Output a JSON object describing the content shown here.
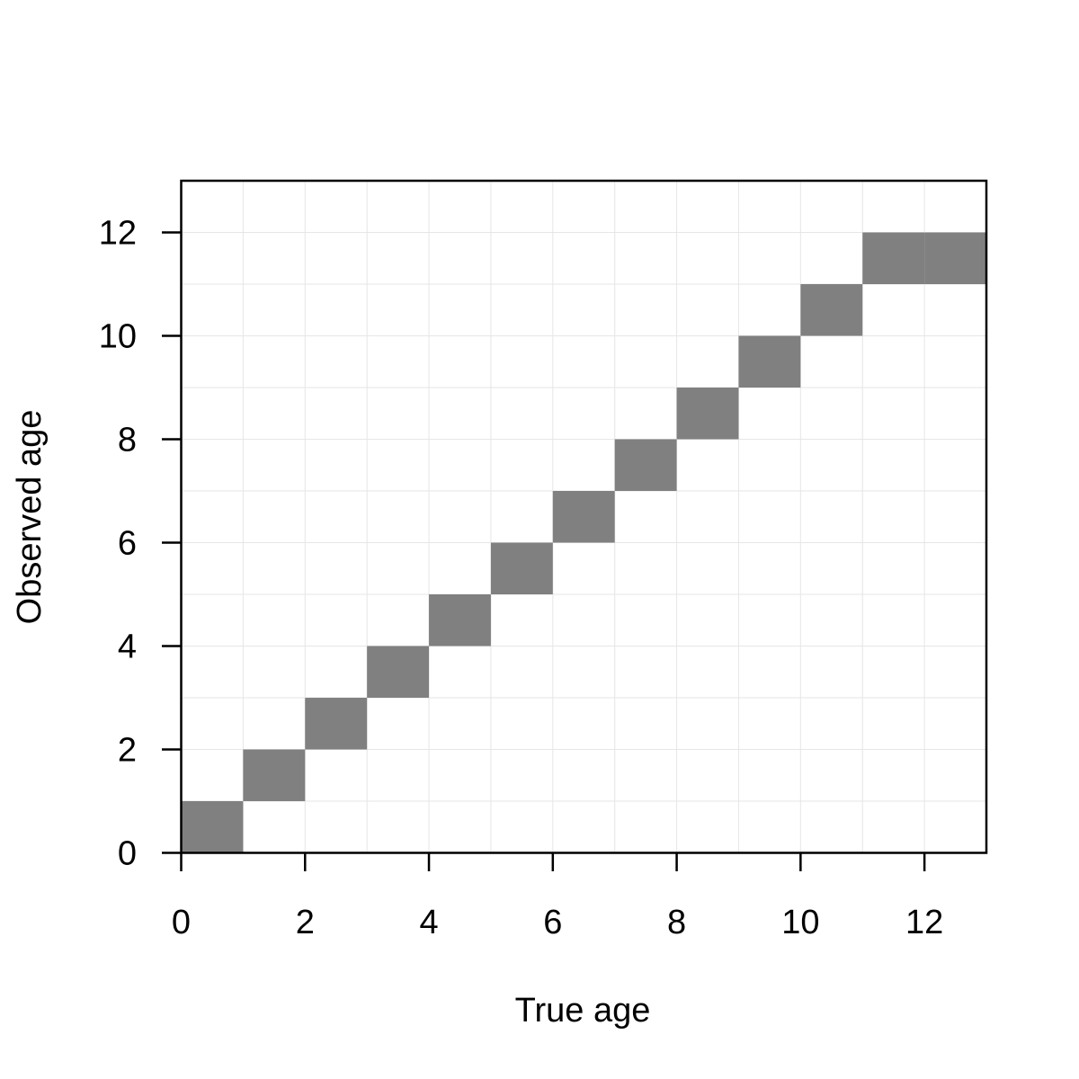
{
  "chart_data": {
    "type": "heatmap",
    "xlabel": "True age",
    "ylabel": "Observed age",
    "xlim": [
      0,
      13
    ],
    "ylim": [
      0,
      13
    ],
    "x_ticks": [
      0,
      2,
      4,
      6,
      8,
      10,
      12
    ],
    "y_ticks": [
      0,
      2,
      4,
      6,
      8,
      10,
      12
    ],
    "grid": true,
    "cell_color": "#808080",
    "grid_color": "#e6e6e6",
    "cells": [
      {
        "true_age": [
          0,
          1
        ],
        "observed_age": [
          0,
          1
        ]
      },
      {
        "true_age": [
          1,
          2
        ],
        "observed_age": [
          1,
          2
        ]
      },
      {
        "true_age": [
          2,
          3
        ],
        "observed_age": [
          2,
          3
        ]
      },
      {
        "true_age": [
          3,
          4
        ],
        "observed_age": [
          3,
          4
        ]
      },
      {
        "true_age": [
          4,
          5
        ],
        "observed_age": [
          4,
          5
        ]
      },
      {
        "true_age": [
          5,
          6
        ],
        "observed_age": [
          5,
          6
        ]
      },
      {
        "true_age": [
          6,
          7
        ],
        "observed_age": [
          6,
          7
        ]
      },
      {
        "true_age": [
          7,
          8
        ],
        "observed_age": [
          7,
          8
        ]
      },
      {
        "true_age": [
          8,
          9
        ],
        "observed_age": [
          8,
          9
        ]
      },
      {
        "true_age": [
          9,
          10
        ],
        "observed_age": [
          9,
          10
        ]
      },
      {
        "true_age": [
          10,
          11
        ],
        "observed_age": [
          10,
          11
        ]
      },
      {
        "true_age": [
          11,
          12
        ],
        "observed_age": [
          11,
          12
        ]
      },
      {
        "true_age": [
          12,
          13
        ],
        "observed_age": [
          11,
          12
        ]
      }
    ]
  }
}
